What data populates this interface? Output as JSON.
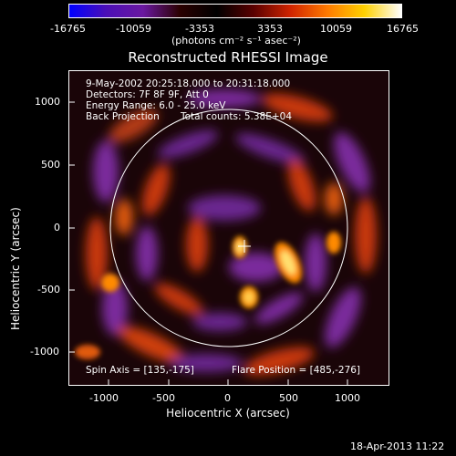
{
  "colorbar": {
    "ticks": [
      "-16765",
      "-10059",
      "-3353",
      "3353",
      "10059",
      "16765"
    ],
    "units": "(photons cm⁻² s⁻¹ asec⁻²)",
    "colors": [
      "#0000ff",
      "#4b0fb6",
      "#6a18a0",
      "#2a0000",
      "#000000",
      "#5a0000",
      "#d12400",
      "#ff7a00",
      "#ffd100",
      "#ffffff"
    ]
  },
  "title": "Reconstructed RHESSI Image",
  "overlay": {
    "time": "9-May-2002 20:25:18.000 to 20:31:18.000",
    "detectors": "Detectors: 7F 8F 9F, Att 0",
    "energy": "Energy Range: 6.0 - 25.0 keV",
    "method": "Back Projection",
    "counts": "Total counts: 5.38E+04",
    "spin_axis": "Spin Axis = [135,-175]",
    "flare_position": "Flare Position = [485,-276]"
  },
  "axes": {
    "x_label": "Heliocentric X (arcsec)",
    "y_label": "Heliocentric Y (arcsec)",
    "x_ticks": [
      "-1000",
      "-500",
      "0",
      "500",
      "1000"
    ],
    "y_ticks": [
      "1000",
      "500",
      "0",
      "-500",
      "-1000"
    ],
    "xlim": [
      -1310,
      1310
    ],
    "ylim": [
      -1290,
      1290
    ]
  },
  "footer": {
    "timestamp": "18-Apr-2013 11:22"
  }
}
